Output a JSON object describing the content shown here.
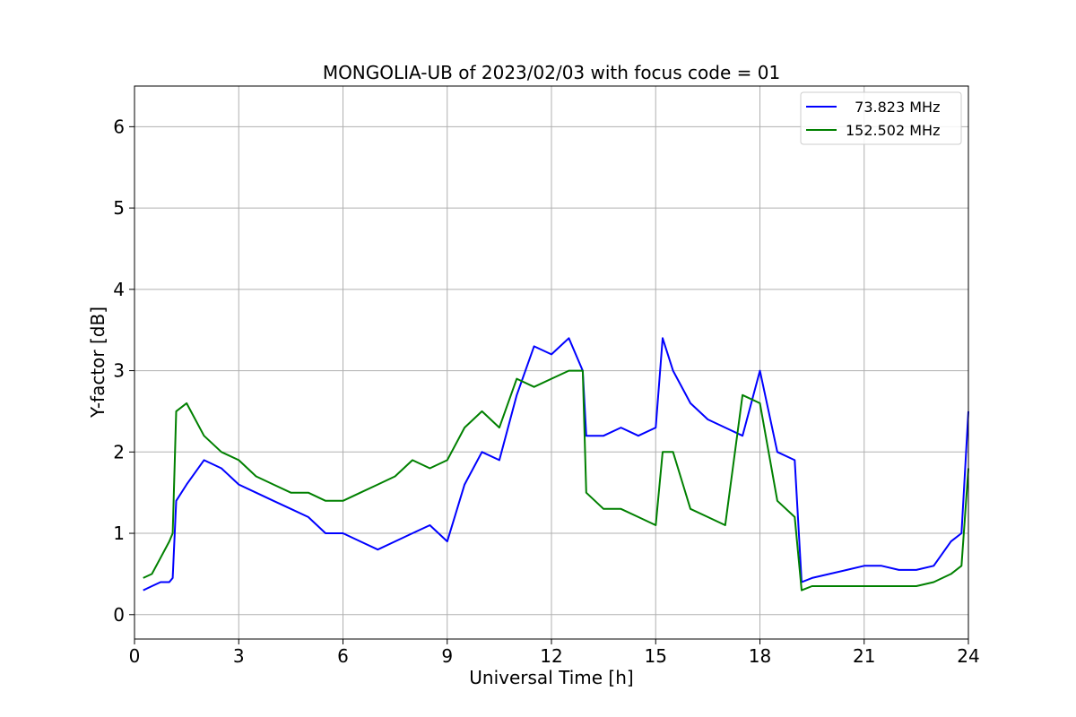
{
  "chart_data": {
    "type": "line",
    "title": "MONGOLIA-UB of 2023/02/03 with focus code = 01",
    "xlabel": "Universal Time [h]",
    "ylabel": "Y-factor [dB]",
    "xlim": [
      0,
      24
    ],
    "ylim": [
      -0.3,
      6.5
    ],
    "xticks": [
      0,
      3,
      6,
      9,
      12,
      15,
      18,
      21,
      24
    ],
    "yticks": [
      0,
      1,
      2,
      3,
      4,
      5,
      6
    ],
    "grid": true,
    "legend_position": "top-right",
    "series": [
      {
        "name": "  73.823 MHz",
        "color": "#0000ff",
        "x": [
          0.25,
          0.5,
          0.75,
          1.0,
          1.1,
          1.2,
          1.5,
          2.0,
          2.5,
          3.0,
          3.5,
          4.0,
          4.5,
          5.0,
          5.5,
          6.0,
          6.5,
          7.0,
          7.5,
          8.0,
          8.5,
          9.0,
          9.5,
          10.0,
          10.5,
          11.0,
          11.5,
          12.0,
          12.5,
          12.9,
          13.0,
          13.5,
          14.0,
          14.5,
          15.0,
          15.2,
          15.5,
          16.0,
          16.5,
          17.0,
          17.5,
          18.0,
          18.5,
          19.0,
          19.2,
          19.5,
          20.0,
          20.5,
          21.0,
          21.5,
          22.0,
          22.5,
          23.0,
          23.5,
          23.8,
          24.0
        ],
        "y": [
          0.3,
          0.35,
          0.4,
          0.4,
          0.45,
          1.4,
          1.6,
          1.9,
          1.8,
          1.6,
          1.5,
          1.4,
          1.3,
          1.2,
          1.0,
          1.0,
          0.9,
          0.8,
          0.9,
          1.0,
          1.1,
          0.9,
          1.6,
          2.0,
          1.9,
          2.7,
          3.3,
          3.2,
          3.4,
          3.0,
          2.2,
          2.2,
          2.3,
          2.2,
          2.3,
          3.4,
          3.0,
          2.6,
          2.4,
          2.3,
          2.2,
          3.0,
          2.0,
          1.9,
          0.4,
          0.45,
          0.5,
          0.55,
          0.6,
          0.6,
          0.55,
          0.55,
          0.6,
          0.9,
          1.0,
          2.5
        ]
      },
      {
        "name": "152.502 MHz",
        "color": "#008000",
        "x": [
          0.25,
          0.5,
          0.75,
          1.0,
          1.1,
          1.2,
          1.5,
          2.0,
          2.5,
          3.0,
          3.5,
          4.0,
          4.5,
          5.0,
          5.5,
          6.0,
          6.5,
          7.0,
          7.5,
          8.0,
          8.5,
          9.0,
          9.5,
          10.0,
          10.5,
          11.0,
          11.5,
          12.0,
          12.5,
          12.9,
          13.0,
          13.5,
          14.0,
          14.5,
          15.0,
          15.2,
          15.5,
          16.0,
          16.5,
          17.0,
          17.5,
          18.0,
          18.5,
          19.0,
          19.2,
          19.5,
          20.0,
          20.5,
          21.0,
          21.5,
          22.0,
          22.5,
          23.0,
          23.5,
          23.8,
          24.0
        ],
        "y": [
          0.45,
          0.5,
          0.7,
          0.9,
          1.0,
          2.5,
          2.6,
          2.2,
          2.0,
          1.9,
          1.7,
          1.6,
          1.5,
          1.5,
          1.4,
          1.4,
          1.5,
          1.6,
          1.7,
          1.9,
          1.8,
          1.9,
          2.3,
          2.5,
          2.3,
          2.9,
          2.8,
          2.9,
          3.0,
          3.0,
          1.5,
          1.3,
          1.3,
          1.2,
          1.1,
          2.0,
          2.0,
          1.3,
          1.2,
          1.1,
          2.7,
          2.6,
          1.4,
          1.2,
          0.3,
          0.35,
          0.35,
          0.35,
          0.35,
          0.35,
          0.35,
          0.35,
          0.4,
          0.5,
          0.6,
          1.8
        ]
      }
    ]
  }
}
